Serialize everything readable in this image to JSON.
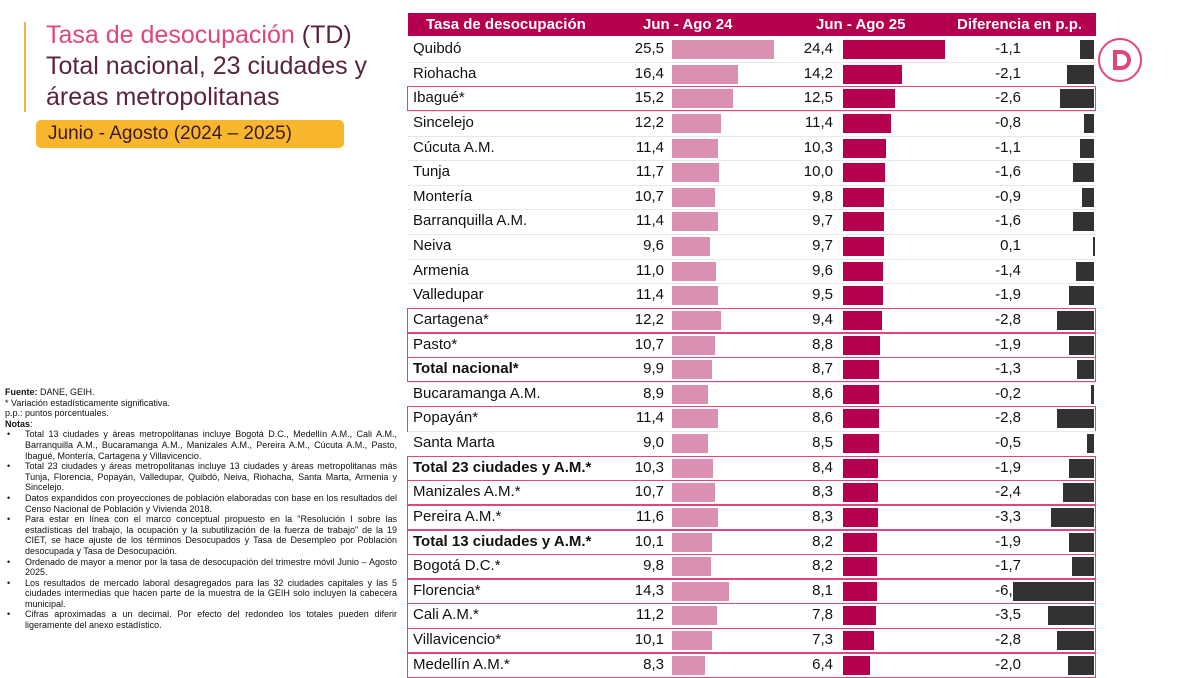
{
  "title": {
    "line1_a": "Tasa de desocupación ",
    "line1_b": "(TD)",
    "line2": "Total nacional, 23 ciudades y",
    "line3": "áreas metropolitanas"
  },
  "period": "Junio - Agosto (2024 – 2025)",
  "notes": {
    "source_label": "Fuente:",
    "source_text": " DANE, GEIH.",
    "line_sig": "* Variación estadísticamente significativa.",
    "line_pp": "p.p.: puntos porcentuales.",
    "notas_label": "Notas",
    "items": [
      "Total 13 ciudades y áreas metropolitanas incluye Bogotá D.C., Medellín A.M., Cali A.M., Barranquilla A.M., Bucaramanga A.M., Manizales A.M., Pereira A.M., Cúcuta A.M., Pasto, Ibagué, Montería, Cartagena y Villavicencio.",
      "Total 23 ciudades y áreas metropolitanas incluye 13 ciudades y áreas metropolitanas más Tunja, Florencia, Popayán, Valledupar, Quibdó, Neiva, Riohacha, Santa Marta, Armenia y Sincelejo.",
      "Datos expandidos con proyecciones de población elaboradas con base en los resultados del Censo Nacional de Población y Vivienda 2018.",
      "Para estar en línea con el marco conceptual propuesto en la \"Resolución I sobre las estadísticas del trabajo, la ocupación y la subutilización de la fuerza de trabajo\" de la 19 CIET, se hace ajuste de los términos Desocupados y Tasa de Desempleo por Población desocupada y Tasa de Desocupación.",
      "Ordenado de mayor a menor por la tasa de desocupación del trimestre móvil Junio – Agosto 2025.",
      "Los resultados de mercado laboral desagregados para las 32 ciudades capitales y las 5 ciudades intermedias que hacen parte de la muestra de la GEIH solo incluyen la cabecera municipal.",
      "Cifras aproximadas a un decimal. Por efecto del redondeo los totales pueden diferir ligeramente del anexo estadístico."
    ]
  },
  "chart_data": {
    "type": "table",
    "columns": [
      "Tasa de desocupación",
      "Jun - Ago 24",
      "Jun - Ago 25",
      "Diferencia en p.p."
    ],
    "colors": {
      "header": "#b5004f",
      "bar_2024": "#db8fb3",
      "bar_2025": "#b5004f",
      "bar_diff": "#323232",
      "highlight": "#e0457b"
    },
    "rows": [
      {
        "name": "Quibdó",
        "v24": "25,5",
        "v25": "24,4",
        "diff": "-1,1",
        "bold": false,
        "box": false
      },
      {
        "name": "Riohacha",
        "v24": "16,4",
        "v25": "14,2",
        "diff": "-2,1",
        "bold": false,
        "box": false
      },
      {
        "name": "Ibagué*",
        "v24": "15,2",
        "v25": "12,5",
        "diff": "-2,6",
        "bold": false,
        "box": true
      },
      {
        "name": "Sincelejo",
        "v24": "12,2",
        "v25": "11,4",
        "diff": "-0,8",
        "bold": false,
        "box": false
      },
      {
        "name": "Cúcuta A.M.",
        "v24": "11,4",
        "v25": "10,3",
        "diff": "-1,1",
        "bold": false,
        "box": false
      },
      {
        "name": "Tunja",
        "v24": "11,7",
        "v25": "10,0",
        "diff": "-1,6",
        "bold": false,
        "box": false
      },
      {
        "name": "Montería",
        "v24": "10,7",
        "v25": "9,8",
        "diff": "-0,9",
        "bold": false,
        "box": false
      },
      {
        "name": "Barranquilla A.M.",
        "v24": "11,4",
        "v25": "9,7",
        "diff": "-1,6",
        "bold": false,
        "box": false
      },
      {
        "name": "Neiva",
        "v24": "9,6",
        "v25": "9,7",
        "diff": "0,1",
        "bold": false,
        "box": false
      },
      {
        "name": "Armenia",
        "v24": "11,0",
        "v25": "9,6",
        "diff": "-1,4",
        "bold": false,
        "box": false
      },
      {
        "name": "Valledupar",
        "v24": "11,4",
        "v25": "9,5",
        "diff": "-1,9",
        "bold": false,
        "box": false
      },
      {
        "name": "Cartagena*",
        "v24": "12,2",
        "v25": "9,4",
        "diff": "-2,8",
        "bold": false,
        "box": true
      },
      {
        "name": "Pasto*",
        "v24": "10,7",
        "v25": "8,8",
        "diff": "-1,9",
        "bold": false,
        "box": true
      },
      {
        "name": "Total nacional*",
        "v24": "9,9",
        "v25": "8,7",
        "diff": "-1,3",
        "bold": true,
        "box": true
      },
      {
        "name": "Bucaramanga A.M.",
        "v24": "8,9",
        "v25": "8,6",
        "diff": "-0,2",
        "bold": false,
        "box": false
      },
      {
        "name": "Popayán*",
        "v24": "11,4",
        "v25": "8,6",
        "diff": "-2,8",
        "bold": false,
        "box": true
      },
      {
        "name": "Santa Marta",
        "v24": "9,0",
        "v25": "8,5",
        "diff": "-0,5",
        "bold": false,
        "box": false
      },
      {
        "name": "Total 23 ciudades y A.M.*",
        "v24": "10,3",
        "v25": "8,4",
        "diff": "-1,9",
        "bold": true,
        "box": true
      },
      {
        "name": "Manizales A.M.*",
        "v24": "10,7",
        "v25": "8,3",
        "diff": "-2,4",
        "bold": false,
        "box": true
      },
      {
        "name": "Pereira A.M.*",
        "v24": "11,6",
        "v25": "8,3",
        "diff": "-3,3",
        "bold": false,
        "box": true
      },
      {
        "name": "Total 13 ciudades y A.M.*",
        "v24": "10,1",
        "v25": "8,2",
        "diff": "-1,9",
        "bold": true,
        "box": true
      },
      {
        "name": "Bogotá D.C.*",
        "v24": "9,8",
        "v25": "8,2",
        "diff": "-1,7",
        "bold": false,
        "box": true
      },
      {
        "name": "Florencia*",
        "v24": "14,3",
        "v25": "8,1",
        "diff": "-6,2",
        "bold": false,
        "box": true
      },
      {
        "name": "Cali A.M.*",
        "v24": "11,2",
        "v25": "7,8",
        "diff": "-3,5",
        "bold": false,
        "box": true
      },
      {
        "name": "Villavicencio*",
        "v24": "10,1",
        "v25": "7,3",
        "diff": "-2,8",
        "bold": false,
        "box": true
      },
      {
        "name": "Medellín A.M.*",
        "v24": "8,3",
        "v25": "6,4",
        "diff": "-2,0",
        "bold": false,
        "box": true
      }
    ]
  }
}
